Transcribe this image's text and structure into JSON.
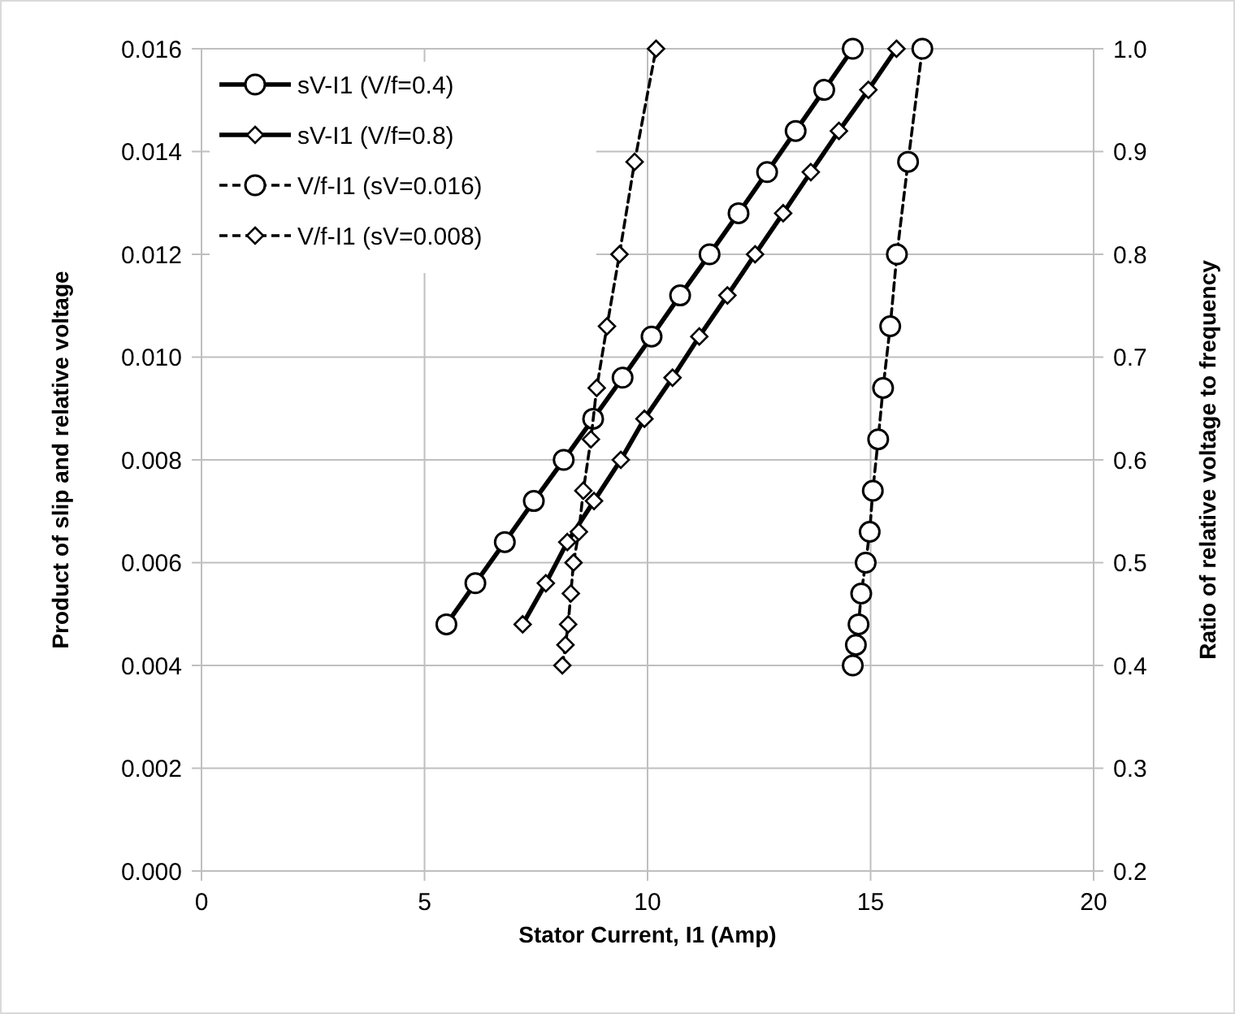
{
  "chart_data": {
    "type": "line",
    "xlabel": "Stator Current, I1 (Amp)",
    "ylabel": "Product of slip and relative voltage",
    "y2label": "Ratio of relative voltage to frequency",
    "xlim": [
      0,
      20
    ],
    "xticks": [
      0,
      5,
      10,
      15,
      20
    ],
    "ylim": [
      0,
      0.016
    ],
    "yticks": [
      {
        "value": 0,
        "label": "0.000"
      },
      {
        "value": 0.002,
        "label": "0.002"
      },
      {
        "value": 0.004,
        "label": "0.004"
      },
      {
        "value": 0.006,
        "label": "0.006"
      },
      {
        "value": 0.008,
        "label": "0.008"
      },
      {
        "value": 0.01,
        "label": "0.010"
      },
      {
        "value": 0.012,
        "label": "0.012"
      },
      {
        "value": 0.014,
        "label": "0.014"
      },
      {
        "value": 0.016,
        "label": "0.016"
      }
    ],
    "y2lim": [
      0.2,
      1.0
    ],
    "y2ticks": [
      {
        "value": 0.2,
        "label": "0.2"
      },
      {
        "value": 0.3,
        "label": "0.3"
      },
      {
        "value": 0.4,
        "label": "0.4"
      },
      {
        "value": 0.5,
        "label": "0.5"
      },
      {
        "value": 0.6,
        "label": "0.6"
      },
      {
        "value": 0.7,
        "label": "0.7"
      },
      {
        "value": 0.8,
        "label": "0.8"
      },
      {
        "value": 0.9,
        "label": "0.9"
      },
      {
        "value": 1.0,
        "label": "1.0"
      }
    ],
    "grid": true,
    "legend": "top left",
    "series": [
      {
        "name": "sV-I1 (V/f=0.4)",
        "color": "#000000",
        "marker": "circle",
        "line_style": "solid",
        "x": [
          5.49,
          6.14,
          6.8,
          7.45,
          8.12,
          8.78,
          9.44,
          10.09,
          10.73,
          11.39,
          12.04,
          12.68,
          13.32,
          13.96,
          14.6
        ],
        "values": [
          0.0048,
          0.0056,
          0.0064,
          0.0072,
          0.008,
          0.0088,
          0.0096,
          0.0104,
          0.0112,
          0.012,
          0.0128,
          0.0136,
          0.0144,
          0.0152,
          0.016
        ]
      },
      {
        "name": "sV-I1 (V/f=0.8)",
        "color": "#000000",
        "marker": "diamond",
        "line_style": "solid",
        "x": [
          7.2,
          7.72,
          8.2,
          8.8,
          9.4,
          9.93,
          10.56,
          11.16,
          11.79,
          12.41,
          13.04,
          13.66,
          14.29,
          14.95,
          15.58
        ],
        "values": [
          0.0048,
          0.0056,
          0.0064,
          0.0072,
          0.008,
          0.0088,
          0.0096,
          0.0104,
          0.0112,
          0.012,
          0.0128,
          0.0136,
          0.0144,
          0.0152,
          0.016
        ]
      },
      {
        "name": "V/f-I1 (sV=0.016)",
        "color": "#000000",
        "marker": "circle",
        "line_style": "dashed",
        "axis": "y2",
        "x": [
          14.6,
          14.67,
          14.73,
          14.79,
          14.89,
          14.98,
          15.05,
          15.17,
          15.28,
          15.44,
          15.59,
          15.84,
          16.16
        ],
        "values": [
          0.4,
          0.42,
          0.44,
          0.47,
          0.5,
          0.53,
          0.57,
          0.62,
          0.67,
          0.73,
          0.8,
          0.89,
          1.0
        ]
      },
      {
        "name": "V/f-I1 (sV=0.008)",
        "color": "#000000",
        "marker": "diamond",
        "line_style": "dashed",
        "axis": "y2",
        "x": [
          8.09,
          8.16,
          8.22,
          8.28,
          8.34,
          8.46,
          8.56,
          8.73,
          8.86,
          9.09,
          9.37,
          9.71,
          10.19
        ],
        "values": [
          0.4,
          0.42,
          0.44,
          0.47,
          0.5,
          0.53,
          0.57,
          0.62,
          0.67,
          0.73,
          0.8,
          0.89,
          1.0
        ]
      }
    ]
  }
}
